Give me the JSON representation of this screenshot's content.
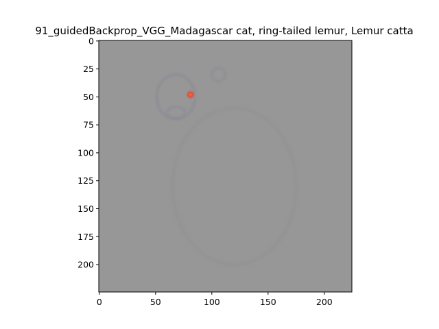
{
  "chart_data": {
    "type": "heatmap",
    "title": "91_guidedBackprop_VGG_Madagascar cat, ring-tailed lemur, Lemur catta",
    "xlabel": "",
    "ylabel": "",
    "xlim": [
      -0.5,
      224.5
    ],
    "ylim": [
      224.5,
      -0.5
    ],
    "y_inverted": true,
    "grid": false,
    "x_ticks": [
      0,
      50,
      100,
      150,
      200
    ],
    "x_tick_labels": [
      "0",
      "50",
      "100",
      "150",
      "200"
    ],
    "y_ticks": [
      0,
      25,
      50,
      75,
      100,
      125,
      150,
      175,
      200
    ],
    "y_tick_labels": [
      "0",
      "25",
      "50",
      "75",
      "100",
      "125",
      "150",
      "175",
      "200"
    ],
    "image_size": [
      224,
      224
    ],
    "background_color": "#979797",
    "content": "guided backpropagation saliency map of a ring-tailed lemur face; strongest activation at the eye",
    "features": [
      {
        "kind": "face-outline",
        "center": [
          68,
          50
        ],
        "radius": [
          17,
          20
        ],
        "color": "#8a8a93"
      },
      {
        "kind": "ear",
        "center": [
          106,
          30
        ],
        "radius": [
          6,
          6
        ],
        "color": "#8c8c96"
      },
      {
        "kind": "eye-hotspot",
        "center": [
          81,
          48
        ],
        "radius": [
          3,
          3
        ],
        "color": "#d94f3a"
      },
      {
        "kind": "muzzle",
        "center": [
          68,
          64
        ],
        "radius": [
          8,
          5
        ],
        "color": "#8e8895"
      },
      {
        "kind": "body-edge",
        "center": [
          120,
          130
        ],
        "radius": [
          55,
          70
        ],
        "color": "#939393"
      }
    ]
  }
}
